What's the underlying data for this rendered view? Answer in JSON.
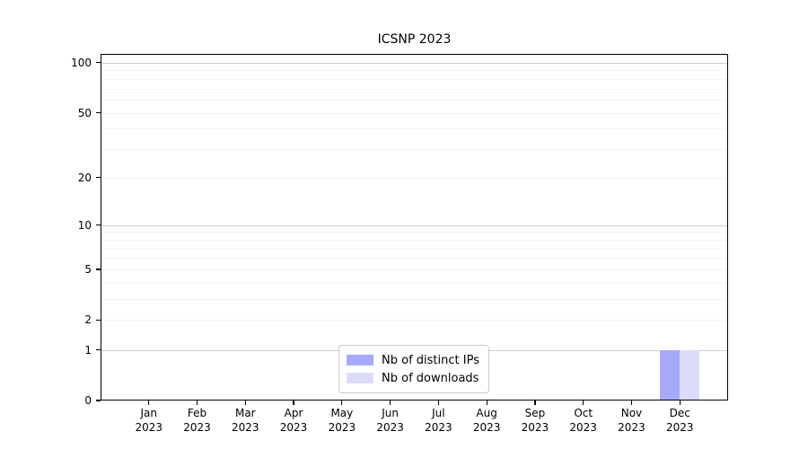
{
  "figure": {
    "background": "#ffffff"
  },
  "chart_data": {
    "type": "bar",
    "title": "ICSNP 2023",
    "x": [
      {
        "month": "Jan",
        "year": "2023"
      },
      {
        "month": "Feb",
        "year": "2023"
      },
      {
        "month": "Mar",
        "year": "2023"
      },
      {
        "month": "Apr",
        "year": "2023"
      },
      {
        "month": "May",
        "year": "2023"
      },
      {
        "month": "Jun",
        "year": "2023"
      },
      {
        "month": "Jul",
        "year": "2023"
      },
      {
        "month": "Aug",
        "year": "2023"
      },
      {
        "month": "Sep",
        "year": "2023"
      },
      {
        "month": "Oct",
        "year": "2023"
      },
      {
        "month": "Nov",
        "year": "2023"
      },
      {
        "month": "Dec",
        "year": "2023"
      }
    ],
    "series": [
      {
        "name": "Nb of distinct IPs",
        "color": "#a8a8fa",
        "values": [
          0,
          0,
          0,
          0,
          0,
          0,
          0,
          0,
          0,
          0,
          0,
          1
        ]
      },
      {
        "name": "Nb of downloads",
        "color": "#dbdbfa",
        "values": [
          0,
          0,
          0,
          0,
          0,
          0,
          0,
          0,
          0,
          0,
          0,
          1
        ]
      }
    ],
    "y_axis": {
      "scale": "log1p",
      "ticks": [
        0,
        1,
        2,
        5,
        10,
        20,
        50,
        100
      ],
      "ylim": [
        0,
        113
      ],
      "major_gridlines": [
        1,
        10,
        100
      ],
      "minor_gridlines": [
        2,
        3,
        4,
        5,
        6,
        7,
        8,
        9,
        20,
        30,
        40,
        50,
        60,
        70,
        80,
        90
      ]
    },
    "grid": true,
    "legend": {
      "position": "lower center"
    },
    "colors": {
      "major_grid": "#cfcfcf",
      "minor_grid": "#f2f2f2",
      "axis": "#000000"
    }
  }
}
